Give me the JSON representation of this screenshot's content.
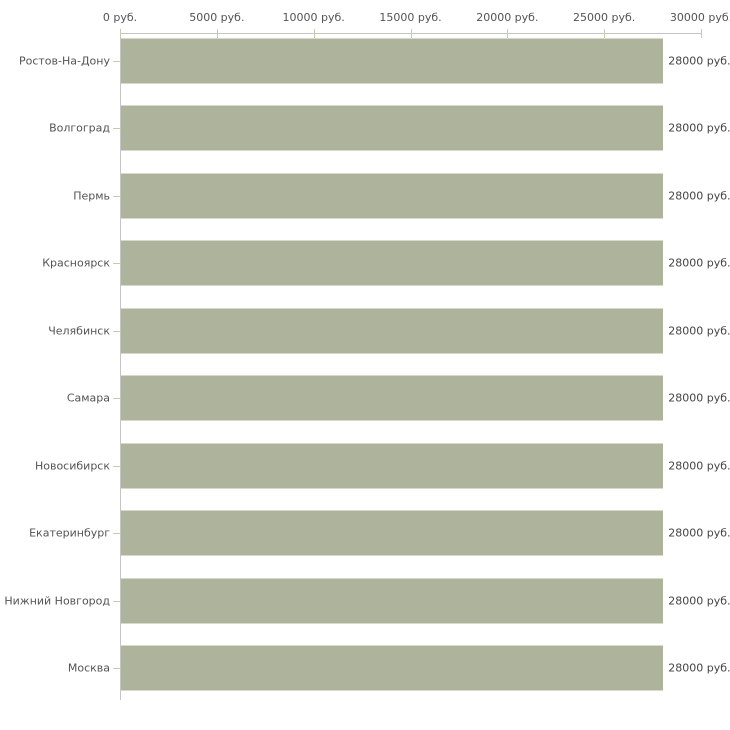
{
  "chart_data": {
    "type": "bar",
    "orientation": "horizontal",
    "title": "",
    "xlabel": "",
    "ylabel": "",
    "grid": false,
    "legend": false,
    "categories": [
      "Ростов-На-Дону",
      "Волгоград",
      "Пермь",
      "Красноярск",
      "Челябинск",
      "Самара",
      "Новосибирск",
      "Екатеринбург",
      "Нижний Новгород",
      "Москва"
    ],
    "values": [
      28000,
      28000,
      28000,
      28000,
      28000,
      28000,
      28000,
      28000,
      28000,
      28000
    ],
    "value_labels": [
      "28000 руб.",
      "28000 руб.",
      "28000 руб.",
      "28000 руб.",
      "28000 руб.",
      "28000 руб.",
      "28000 руб.",
      "28000 руб.",
      "28000 руб.",
      "28000 руб."
    ],
    "x_axis": {
      "position": "top",
      "min": 0,
      "max": 30000,
      "ticks": [
        0,
        5000,
        10000,
        15000,
        20000,
        25000,
        30000
      ],
      "tick_labels": [
        "0 руб.",
        "5000 руб.",
        "10000 руб.",
        "15000 руб.",
        "20000 руб.",
        "25000 руб.",
        "30000 руб."
      ]
    },
    "colors": {
      "bar": "#aeb49b",
      "axis_line": "#c5c5c5",
      "tick_mark": "#c8cbb0",
      "tick_label": "#545454",
      "category_label": "#545454",
      "value_label": "#444444",
      "background": "#ffffff"
    }
  }
}
